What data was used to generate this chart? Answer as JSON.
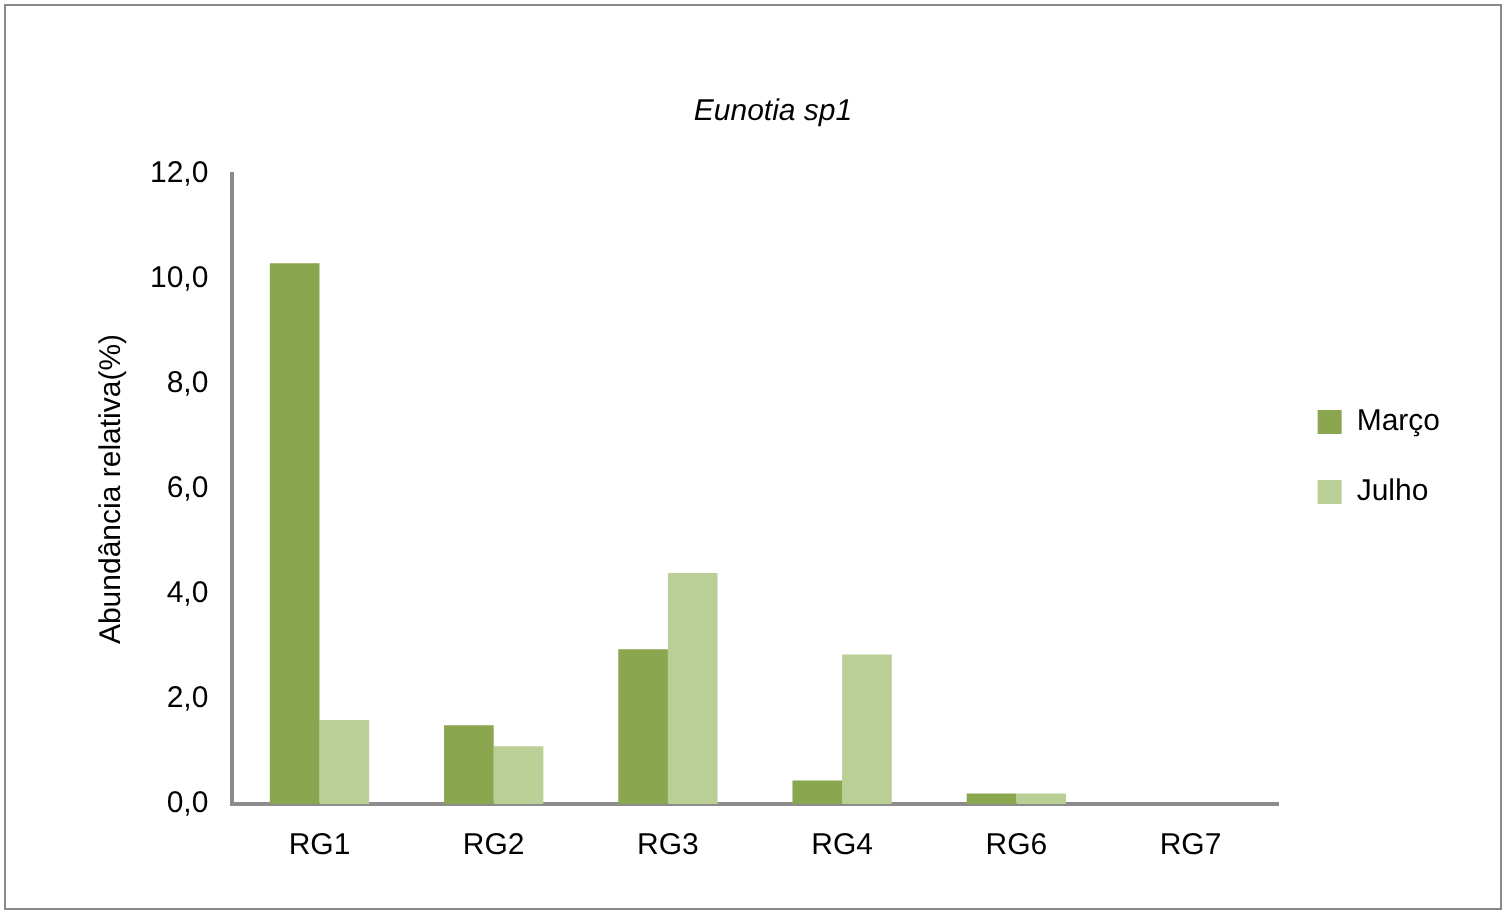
{
  "chart_data": {
    "type": "bar",
    "title": "Eunotia sp1",
    "ylabel": "Abundância relativa(%)",
    "categories": [
      "RG1",
      "RG2",
      "RG3",
      "RG4",
      "RG6",
      "RG7"
    ],
    "series": [
      {
        "name": "Março",
        "color": "#8aa64f",
        "values": [
          10.3,
          1.5,
          2.95,
          0.45,
          0.2,
          0
        ]
      },
      {
        "name": "Julho",
        "color": "#b9cf96",
        "values": [
          1.6,
          1.1,
          4.4,
          2.85,
          0.2,
          0
        ]
      }
    ],
    "ylim": [
      0,
      12
    ],
    "yticks": [
      {
        "value": 0,
        "label": "0,0"
      },
      {
        "value": 2,
        "label": "2,0"
      },
      {
        "value": 4,
        "label": "4,0"
      },
      {
        "value": 6,
        "label": "6,0"
      },
      {
        "value": 8,
        "label": "8,0"
      },
      {
        "value": 10,
        "label": "10,0"
      },
      {
        "value": 12,
        "label": "12,0"
      }
    ],
    "grid": false,
    "legend": "right"
  }
}
